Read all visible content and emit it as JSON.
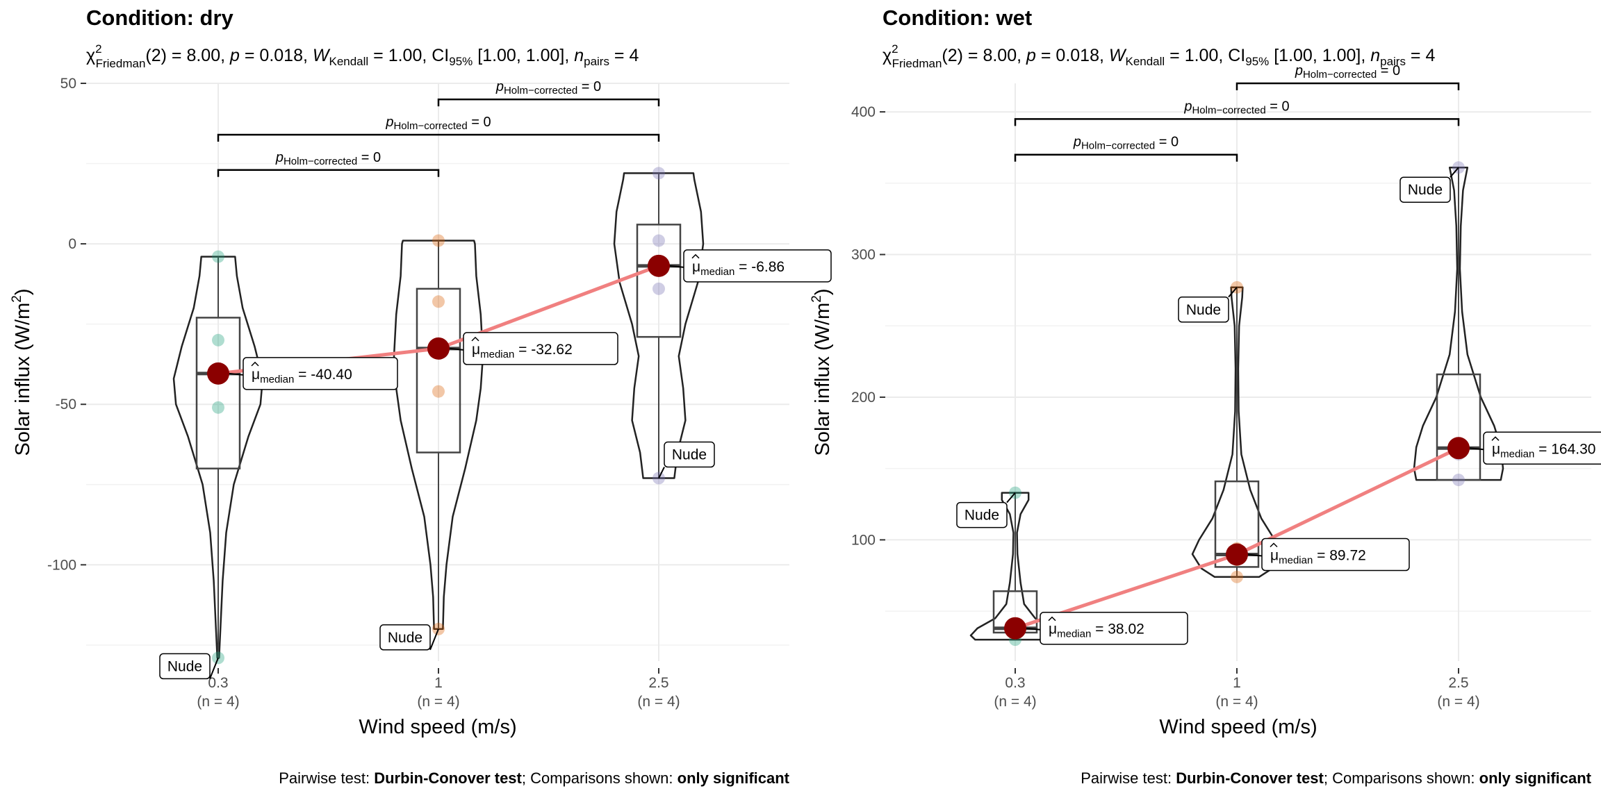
{
  "chart_data": [
    {
      "type": "violin-box",
      "title": "Condition: dry",
      "subtitle": {
        "stat_prefix": "χ",
        "stat_sup": "2",
        "stat_sub": "Friedman",
        "stat_rest": "(2) = 8.00, ",
        "p_symbol": "p",
        "p_rest": " = 0.018, ",
        "w_symbol": "W",
        "w_sub": "Kendall",
        "w_rest": " = 1.00, CI",
        "ci_sub": "95%",
        "ci_rest": " [1.00, 1.00], ",
        "n_symbol": "n",
        "n_sub": "pairs",
        "n_rest": " = 4"
      },
      "xlabel": "Wind speed (m/s)",
      "ylabel_main": "Solar influx (W/m",
      "ylabel_sup": "2",
      "ylabel_end": ")",
      "ylim": [
        -130,
        50
      ],
      "yticks": [
        {
          "value": 50,
          "label": "50"
        },
        {
          "value": 0,
          "label": "0"
        },
        {
          "value": -50,
          "label": "-50"
        },
        {
          "value": -100,
          "label": "-100"
        }
      ],
      "categories": [
        {
          "label": "0.3",
          "n_label": "(n = 4)"
        },
        {
          "label": "1",
          "n_label": "(n = 4)"
        },
        {
          "label": "2.5",
          "n_label": "(n = 4)"
        }
      ],
      "groups": [
        {
          "color": "#1b9e77",
          "points": [
            -4,
            -30,
            -51,
            -129
          ],
          "box": {
            "q1": -70,
            "median": -40.4,
            "q3": -23,
            "whisker_low": -129,
            "whisker_high": -4
          },
          "median": -40.4,
          "median_value": "-40.40",
          "outlier_label": "Nude",
          "outlier_value": -129,
          "violin": [
            [
              -129,
              0.02
            ],
            [
              -120,
              0.05
            ],
            [
              -105,
              0.1
            ],
            [
              -90,
              0.18
            ],
            [
              -75,
              0.35
            ],
            [
              -60,
              0.68
            ],
            [
              -50,
              0.95
            ],
            [
              -42,
              1.0
            ],
            [
              -32,
              0.82
            ],
            [
              -20,
              0.55
            ],
            [
              -10,
              0.42
            ],
            [
              -4,
              0.38
            ]
          ]
        },
        {
          "color": "#d95f02",
          "points": [
            1,
            -18,
            -46,
            -120
          ],
          "box": {
            "q1": -65,
            "median": -32.62,
            "q3": -14,
            "whisker_low": -120,
            "whisker_high": 1
          },
          "median": -32.62,
          "median_value": "-32.62",
          "outlier_label": "Nude",
          "outlier_value": -120,
          "violin": [
            [
              -120,
              0.1
            ],
            [
              -110,
              0.12
            ],
            [
              -100,
              0.18
            ],
            [
              -85,
              0.32
            ],
            [
              -70,
              0.6
            ],
            [
              -55,
              0.85
            ],
            [
              -45,
              0.95
            ],
            [
              -35,
              1.0
            ],
            [
              -22,
              0.95
            ],
            [
              -10,
              0.85
            ],
            [
              0,
              0.82
            ],
            [
              1,
              0.8
            ]
          ]
        },
        {
          "color": "#7570b3",
          "points": [
            22,
            1,
            -14,
            -73
          ],
          "box": {
            "q1": -29,
            "median": -6.86,
            "q3": 6,
            "whisker_low": -73,
            "whisker_high": 22
          },
          "median": -6.86,
          "median_value": "-6.86",
          "outlier_label": "Nude",
          "outlier_value": -73,
          "violin": [
            [
              -73,
              0.35
            ],
            [
              -65,
              0.42
            ],
            [
              -55,
              0.6
            ],
            [
              -45,
              0.55
            ],
            [
              -35,
              0.45
            ],
            [
              -25,
              0.6
            ],
            [
              -12,
              0.88
            ],
            [
              0,
              1.0
            ],
            [
              10,
              0.95
            ],
            [
              20,
              0.8
            ],
            [
              22,
              0.78
            ]
          ]
        }
      ],
      "comparisons": [
        {
          "from": 0,
          "to": 1,
          "y": 23,
          "label_p": "p",
          "label_sub": "Holm−corrected",
          "label_rest": " = 0"
        },
        {
          "from": 0,
          "to": 2,
          "y": 34,
          "label_p": "p",
          "label_sub": "Holm−corrected",
          "label_rest": " = 0"
        },
        {
          "from": 1,
          "to": 2,
          "y": 45,
          "label_p": "p",
          "label_sub": "Holm−corrected",
          "label_rest": " = 0"
        }
      ],
      "median_symbol": "μ",
      "median_sub": "median",
      "caption": {
        "prefix": "Pairwise test: ",
        "test": "Durbin-Conover test",
        "mid": "; Comparisons shown: ",
        "which": "only significant"
      }
    },
    {
      "type": "violin-box",
      "title": "Condition: wet",
      "subtitle": {
        "stat_prefix": "χ",
        "stat_sup": "2",
        "stat_sub": "Friedman",
        "stat_rest": "(2) = 8.00, ",
        "p_symbol": "p",
        "p_rest": " = 0.018, ",
        "w_symbol": "W",
        "w_sub": "Kendall",
        "w_rest": " = 1.00, CI",
        "ci_sub": "95%",
        "ci_rest": " [1.00, 1.00], ",
        "n_symbol": "n",
        "n_sub": "pairs",
        "n_rest": " = 4"
      },
      "xlabel": "Wind speed (m/s)",
      "ylabel_main": "Solar influx (W/m",
      "ylabel_sup": "2",
      "ylabel_end": ")",
      "ylim": [
        15,
        420
      ],
      "yticks": [
        {
          "value": 400,
          "label": "400"
        },
        {
          "value": 300,
          "label": "300"
        },
        {
          "value": 200,
          "label": "200"
        },
        {
          "value": 100,
          "label": "100"
        }
      ],
      "categories": [
        {
          "label": "0.3",
          "n_label": "(n = 4)"
        },
        {
          "label": "1",
          "n_label": "(n = 4)"
        },
        {
          "label": "2.5",
          "n_label": "(n = 4)"
        }
      ],
      "groups": [
        {
          "color": "#1b9e77",
          "points": [
            133,
            38,
            36,
            30
          ],
          "box": {
            "q1": 35,
            "median": 38.02,
            "q3": 64,
            "whisker_low": 30,
            "whisker_high": 133
          },
          "median": 38.02,
          "median_value": "38.02",
          "outlier_label": "Nude",
          "outlier_value": 133,
          "violin": [
            [
              30,
              0.9
            ],
            [
              33,
              1.0
            ],
            [
              38,
              0.85
            ],
            [
              45,
              0.45
            ],
            [
              55,
              0.2
            ],
            [
              70,
              0.12
            ],
            [
              90,
              0.05
            ],
            [
              105,
              0.04
            ],
            [
              118,
              0.12
            ],
            [
              128,
              0.3
            ],
            [
              133,
              0.3
            ]
          ]
        },
        {
          "color": "#d95f02",
          "points": [
            277,
            94,
            86,
            74
          ],
          "box": {
            "q1": 81,
            "median": 89.72,
            "q3": 141,
            "whisker_low": 74,
            "whisker_high": 277
          },
          "median": 89.72,
          "median_value": "89.72",
          "outlier_label": "Nude",
          "outlier_value": 277,
          "violin": [
            [
              74,
              0.5
            ],
            [
              80,
              0.8
            ],
            [
              90,
              1.0
            ],
            [
              100,
              0.85
            ],
            [
              115,
              0.55
            ],
            [
              135,
              0.3
            ],
            [
              160,
              0.1
            ],
            [
              190,
              0.04
            ],
            [
              220,
              0.03
            ],
            [
              250,
              0.05
            ],
            [
              270,
              0.12
            ],
            [
              277,
              0.13
            ]
          ]
        },
        {
          "color": "#7570b3",
          "points": [
            361,
            165,
            160,
            142
          ],
          "box": {
            "q1": 142,
            "median": 164.3,
            "q3": 216,
            "whisker_low": 142,
            "whisker_high": 361
          },
          "median": 164.3,
          "median_value": "164.30",
          "outlier_label": "Nude",
          "outlier_value": 361,
          "violin": [
            [
              142,
              0.95
            ],
            [
              150,
              1.0
            ],
            [
              165,
              0.95
            ],
            [
              180,
              0.8
            ],
            [
              200,
              0.5
            ],
            [
              230,
              0.2
            ],
            [
              260,
              0.08
            ],
            [
              290,
              0.03
            ],
            [
              320,
              0.05
            ],
            [
              345,
              0.1
            ],
            [
              361,
              0.2
            ]
          ]
        }
      ],
      "comparisons": [
        {
          "from": 0,
          "to": 1,
          "y": 370,
          "label_p": "p",
          "label_sub": "Holm−corrected",
          "label_rest": " = 0"
        },
        {
          "from": 0,
          "to": 2,
          "y": 395,
          "label_p": "p",
          "label_sub": "Holm−corrected",
          "label_rest": " = 0"
        },
        {
          "from": 1,
          "to": 2,
          "y": 420,
          "label_p": "p",
          "label_sub": "Holm−corrected",
          "label_rest": " = 0"
        }
      ],
      "median_symbol": "μ",
      "median_sub": "median",
      "caption": {
        "prefix": "Pairwise test: ",
        "test": "Durbin-Conover test",
        "mid": "; Comparisons shown: ",
        "which": "only significant"
      }
    }
  ],
  "colors": {
    "median_point": "#8b0000",
    "median_line": "#f08080",
    "grid": "#ebebeb",
    "outline": "#222222"
  }
}
